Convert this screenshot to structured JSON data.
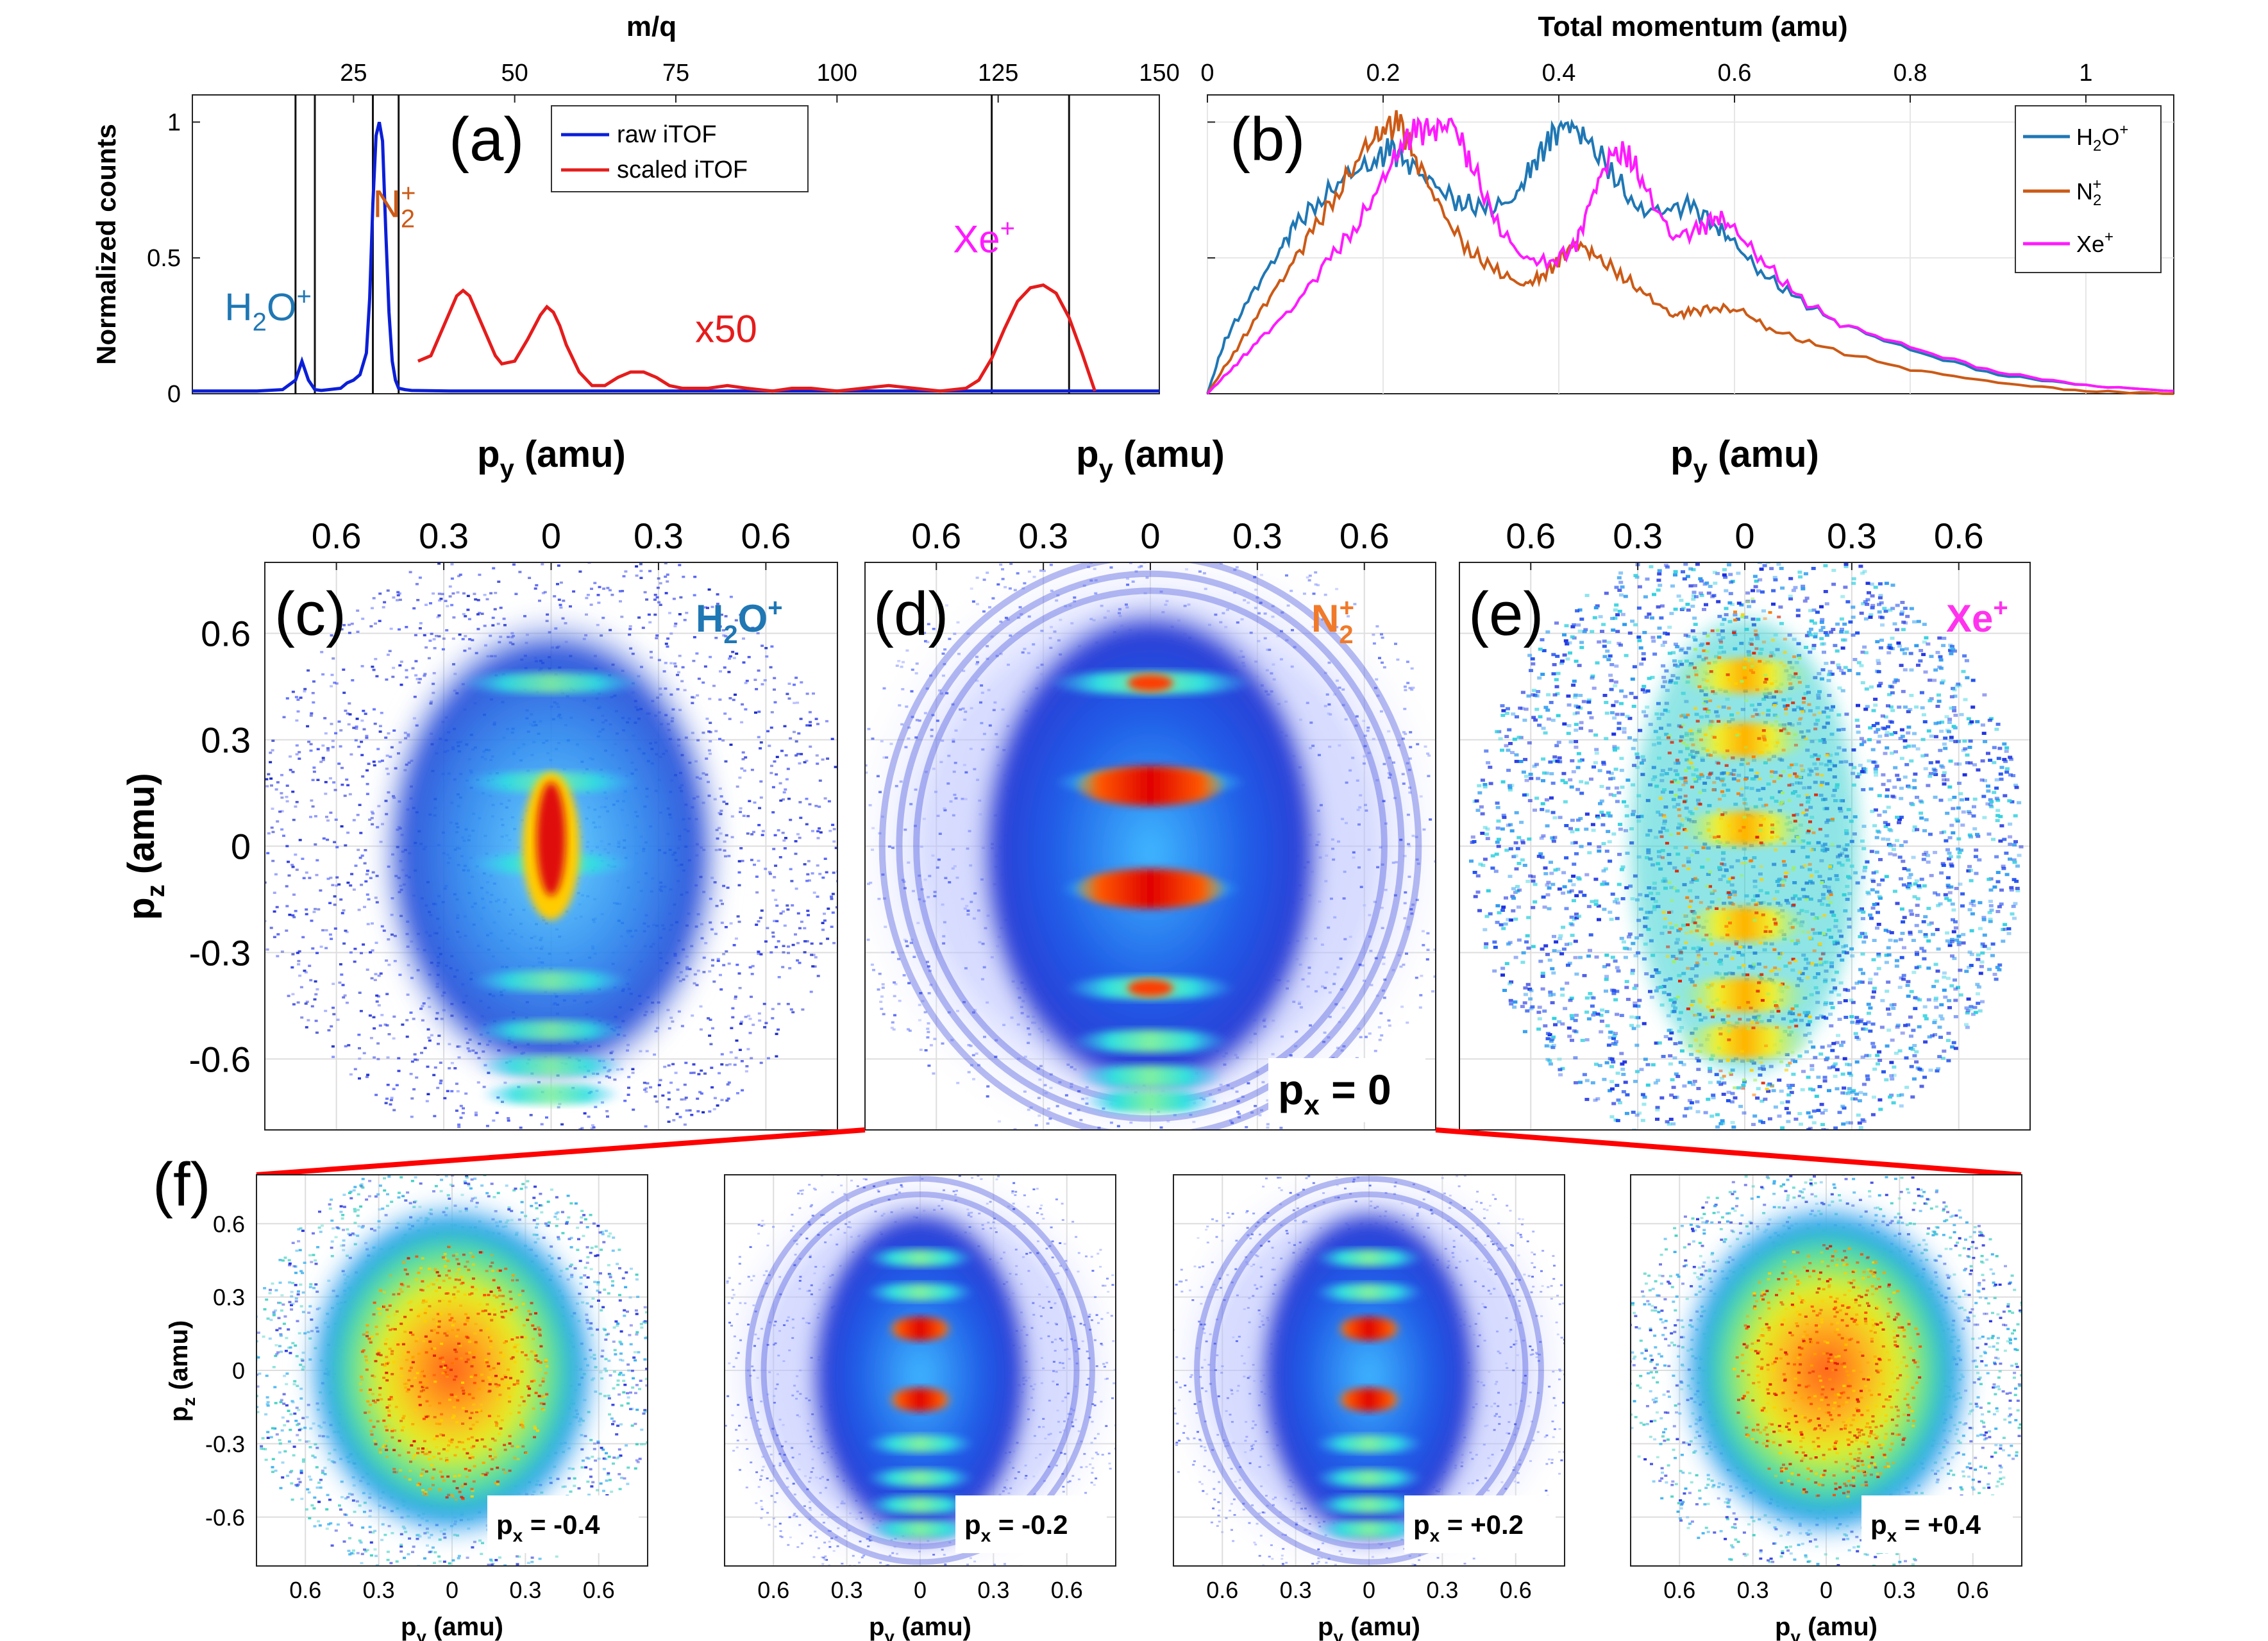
{
  "colors": {
    "raw": "#0b1fd8",
    "scaled": "#e51c1c",
    "h2o": "#1f77b4",
    "n2": "#cc5a16",
    "xe": "#ff1aff",
    "red": "#ff0000",
    "frame": "#222222",
    "grid": "#e6e6e6"
  },
  "chart_data": [
    {
      "id": "a",
      "type": "line",
      "panel_label": "(a)",
      "title": "m/q",
      "xlabel": "m/q",
      "ylabel": "Normalized counts",
      "xlim": [
        0,
        150
      ],
      "ylim": [
        0,
        1.1
      ],
      "xticks": [
        25,
        50,
        75,
        100,
        125,
        150
      ],
      "yticks": [
        0,
        0.5,
        1
      ],
      "tick_labels_x": [
        "25",
        "50",
        "75",
        "100",
        "125",
        "150"
      ],
      "tick_labels_y": [
        "0",
        "0.5",
        "1"
      ],
      "legend": [
        "raw iTOF",
        "scaled iTOF"
      ],
      "legend_position": "top-center",
      "series": [
        {
          "name": "raw iTOF",
          "x": [
            0,
            10,
            14,
            16,
            17,
            18,
            19,
            20,
            23,
            24,
            25,
            26,
            27,
            27.5,
            28,
            28.5,
            29,
            29.5,
            30,
            30.5,
            31,
            31.5,
            32,
            33,
            34,
            40,
            60,
            80,
            100,
            120,
            130,
            140,
            150
          ],
          "y": [
            0.01,
            0.01,
            0.015,
            0.05,
            0.12,
            0.05,
            0.015,
            0.012,
            0.02,
            0.04,
            0.05,
            0.07,
            0.15,
            0.35,
            0.7,
            0.95,
            1.0,
            0.93,
            0.6,
            0.3,
            0.12,
            0.05,
            0.02,
            0.015,
            0.012,
            0.01,
            0.01,
            0.01,
            0.01,
            0.01,
            0.01,
            0.01,
            0.01
          ]
        },
        {
          "name": "scaled iTOF",
          "x": [
            35,
            37,
            39,
            41,
            42,
            43,
            45,
            47,
            48,
            50,
            52,
            54,
            55,
            56,
            57,
            58,
            60,
            62,
            64,
            66,
            68,
            70,
            72,
            74,
            76,
            78,
            80,
            83,
            86,
            90,
            93,
            96,
            100,
            104,
            108,
            112,
            116,
            120,
            122,
            124,
            126,
            128,
            130,
            132,
            134,
            136,
            138,
            140
          ],
          "y": [
            0.12,
            0.14,
            0.25,
            0.36,
            0.38,
            0.36,
            0.25,
            0.14,
            0.11,
            0.12,
            0.2,
            0.29,
            0.32,
            0.3,
            0.25,
            0.18,
            0.08,
            0.03,
            0.03,
            0.06,
            0.08,
            0.08,
            0.06,
            0.03,
            0.02,
            0.02,
            0.02,
            0.03,
            0.02,
            0.01,
            0.02,
            0.02,
            0.01,
            0.02,
            0.03,
            0.02,
            0.01,
            0.02,
            0.05,
            0.13,
            0.24,
            0.34,
            0.39,
            0.4,
            0.37,
            0.28,
            0.15,
            0.01
          ]
        }
      ],
      "vlines": [
        16,
        19,
        28,
        32,
        124,
        136
      ],
      "annotations": [
        {
          "text": "H2O+",
          "label": "H",
          "sub": "2",
          "rest": "O",
          "sup": "+",
          "color_key": "h2o",
          "x": 5,
          "y": 0.27
        },
        {
          "text": "N2+",
          "label": "N",
          "sub": "2",
          "rest": "",
          "sup": "+",
          "color_key": "n2",
          "x": 28,
          "y": 0.65
        },
        {
          "text": "Xe+",
          "label": "Xe",
          "sub": "",
          "rest": "",
          "sup": "+",
          "color_key": "xe",
          "x": 118,
          "y": 0.52
        },
        {
          "text": "x50",
          "label": "x50",
          "sub": "",
          "rest": "",
          "sup": "",
          "color_key": "scaled",
          "x": 78,
          "y": 0.19
        }
      ]
    },
    {
      "id": "b",
      "type": "line",
      "panel_label": "(b)",
      "title": "Total momentum (amu)",
      "xlabel": "Total momentum (amu)",
      "ylabel": "",
      "xlim": [
        0,
        1.1
      ],
      "ylim": [
        0,
        1.1
      ],
      "xticks": [
        0,
        0.2,
        0.4,
        0.6,
        0.8,
        1
      ],
      "tick_labels_x": [
        "0",
        "0.2",
        "0.4",
        "0.6",
        "0.8",
        "1"
      ],
      "legend": [
        "H2O+",
        "N2+",
        "Xe+"
      ],
      "legend_position": "top-right",
      "series": [
        {
          "name": "H2O+",
          "color_key": "h2o",
          "x": [
            0,
            0.02,
            0.05,
            0.08,
            0.1,
            0.13,
            0.16,
            0.19,
            0.21,
            0.23,
            0.26,
            0.29,
            0.32,
            0.35,
            0.37,
            0.39,
            0.41,
            0.43,
            0.46,
            0.49,
            0.52,
            0.55,
            0.58,
            0.6,
            0.63,
            0.67,
            0.72,
            0.8,
            0.9,
            1.0,
            1.1
          ],
          "y": [
            0,
            0.2,
            0.36,
            0.52,
            0.62,
            0.72,
            0.8,
            0.86,
            0.9,
            0.85,
            0.76,
            0.7,
            0.68,
            0.72,
            0.84,
            0.94,
            1.0,
            0.94,
            0.82,
            0.67,
            0.68,
            0.69,
            0.62,
            0.55,
            0.45,
            0.35,
            0.26,
            0.16,
            0.07,
            0.03,
            0.01
          ]
        },
        {
          "name": "N2+",
          "color_key": "n2",
          "x": [
            0,
            0.03,
            0.06,
            0.09,
            0.12,
            0.15,
            0.18,
            0.2,
            0.22,
            0.24,
            0.27,
            0.3,
            0.33,
            0.36,
            0.38,
            0.4,
            0.42,
            0.44,
            0.47,
            0.5,
            0.53,
            0.55,
            0.58,
            0.61,
            0.64,
            0.7,
            0.8,
            0.9,
            1.0,
            1.1
          ],
          "y": [
            0,
            0.15,
            0.3,
            0.45,
            0.6,
            0.75,
            0.9,
            0.98,
            0.99,
            0.85,
            0.65,
            0.52,
            0.45,
            0.4,
            0.43,
            0.49,
            0.56,
            0.51,
            0.44,
            0.36,
            0.29,
            0.3,
            0.32,
            0.3,
            0.24,
            0.17,
            0.09,
            0.04,
            0.01,
            0.0
          ]
        },
        {
          "name": "Xe+",
          "color_key": "xe",
          "x": [
            0,
            0.03,
            0.06,
            0.1,
            0.14,
            0.17,
            0.2,
            0.22,
            0.24,
            0.26,
            0.28,
            0.3,
            0.33,
            0.36,
            0.39,
            0.42,
            0.44,
            0.46,
            0.48,
            0.5,
            0.53,
            0.56,
            0.58,
            0.6,
            0.63,
            0.67,
            0.72,
            0.8,
            0.9,
            1.0,
            1.1
          ],
          "y": [
            0,
            0.1,
            0.2,
            0.33,
            0.5,
            0.62,
            0.78,
            0.92,
            0.97,
            0.98,
            0.99,
            0.85,
            0.62,
            0.5,
            0.48,
            0.55,
            0.75,
            0.88,
            0.88,
            0.74,
            0.58,
            0.6,
            0.66,
            0.6,
            0.5,
            0.36,
            0.26,
            0.17,
            0.08,
            0.03,
            0.01
          ]
        }
      ]
    },
    {
      "id": "c",
      "type": "heatmap",
      "panel_label": "(c)",
      "species": "H2O+",
      "species_main": "H",
      "species_sub": "2",
      "species_rest": "O",
      "species_sup": "+",
      "color_key": "h2o",
      "xlabel": "py (amu)",
      "ylabel": "pz (amu)",
      "xlim": [
        -0.8,
        0.8
      ],
      "ylim": [
        -0.8,
        0.8
      ],
      "tick_labels_x": [
        "0.6",
        "0.3",
        "0",
        "0.3",
        "0.6"
      ],
      "tick_labels_y": [
        "0.6",
        "0.3",
        "0",
        "-0.3",
        "-0.6"
      ],
      "bands": [
        0.46,
        0.18,
        -0.05,
        -0.38,
        -0.52,
        -0.62,
        -0.7
      ],
      "center_ridge": true
    },
    {
      "id": "d",
      "type": "heatmap",
      "panel_label": "(d)",
      "species": "N2+",
      "species_main": "N",
      "species_sub": "2",
      "species_rest": "",
      "species_sup": "+",
      "color_key": "n2",
      "xlabel": "py (amu)",
      "ylabel": "pz (amu)",
      "xlim": [
        -0.8,
        0.8
      ],
      "ylim": [
        -0.8,
        0.8
      ],
      "tick_labels_x": [
        "0.6",
        "0.3",
        "0",
        "0.3",
        "0.6"
      ],
      "bands": [
        0.46,
        0.18,
        -0.12,
        -0.4,
        -0.55,
        -0.65,
        -0.72
      ],
      "hot_bands": [
        0.17,
        -0.12
      ],
      "slice": "px = 0",
      "slice_main": "p",
      "slice_sub": "x",
      "slice_rest": " = 0"
    },
    {
      "id": "e",
      "type": "heatmap",
      "panel_label": "(e)",
      "species": "Xe+",
      "species_main": "Xe",
      "species_sub": "",
      "species_rest": "",
      "species_sup": "+",
      "color_key": "xe",
      "xlabel": "py (amu)",
      "ylabel": "pz (amu)",
      "xlim": [
        -0.8,
        0.8
      ],
      "ylim": [
        -0.8,
        0.8
      ],
      "tick_labels_x": [
        "0.6",
        "0.3",
        "0",
        "0.3",
        "0.6"
      ],
      "bands": [
        0.48,
        0.3,
        0.05,
        -0.22,
        -0.42,
        -0.55
      ],
      "noisy": true
    },
    {
      "id": "f",
      "type": "heatmap",
      "panel_label": "(f)",
      "xlabel": "py (amu)",
      "ylabel": "pz (amu)",
      "tick_labels_x": [
        "0.6",
        "0.3",
        "0",
        "0.3",
        "0.6"
      ],
      "tick_labels_y": [
        "0.6",
        "0.3",
        "0",
        "-0.3",
        "-0.6"
      ],
      "panels": [
        {
          "px": -0.4,
          "label": "px = -0.4",
          "label_val": " = -0.4",
          "style": "diffuse"
        },
        {
          "px": -0.2,
          "label": "px = -0.2",
          "label_val": " = -0.2",
          "style": "banded"
        },
        {
          "px": 0.2,
          "label": "px = +0.2",
          "label_val": " = +0.2",
          "style": "banded"
        },
        {
          "px": 0.4,
          "label": "px = +0.4",
          "label_val": " = +0.4",
          "style": "diffuse"
        }
      ]
    }
  ],
  "labels": {
    "py_axis": "p",
    "py_sub": "y",
    "py_unit": " (amu)",
    "pz_axis": "p",
    "pz_sub": "z",
    "pz_unit": " (amu)",
    "px_main": "p",
    "px_sub": "x"
  }
}
